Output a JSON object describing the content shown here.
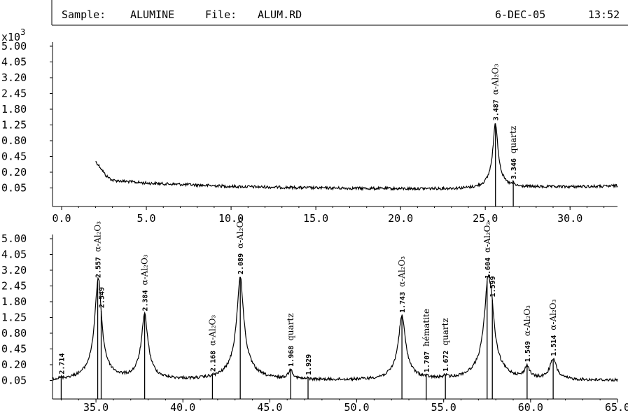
{
  "header": {
    "sample_label": "Sample:",
    "sample_value": "ALUMINE",
    "file_label": "File:",
    "file_value": "ALUM.RD",
    "date": "6-DEC-05",
    "time": "13:52"
  },
  "chart_data": [
    {
      "type": "line",
      "title": "",
      "xlabel": "",
      "ylabel": "",
      "y_multiplier": "x10",
      "y_multiplier_exp": "3",
      "xlim": [
        0.0,
        32.8
      ],
      "ylim": [
        0.0,
        5.0
      ],
      "y_scale": "sqrt",
      "y_ticks": [
        "5.00",
        "4.05",
        "3.20",
        "2.45",
        "1.80",
        "1.25",
        "0.80",
        "0.45",
        "0.20",
        "0.05"
      ],
      "x_ticks": [
        "0.0",
        "5.0",
        "10.0",
        "15.0",
        "20.0",
        "25.0",
        "30.0"
      ],
      "baseline": {
        "points": [
          [
            2.0,
            0.36
          ],
          [
            2.6,
            0.16
          ],
          [
            3.0,
            0.11
          ],
          [
            5.0,
            0.085
          ],
          [
            10.0,
            0.06
          ],
          [
            15.0,
            0.05
          ],
          [
            20.0,
            0.045
          ],
          [
            24.0,
            0.045
          ],
          [
            28.0,
            0.055
          ],
          [
            32.0,
            0.06
          ],
          [
            32.8,
            0.065
          ]
        ]
      },
      "peaks": [
        {
          "pos": 25.6,
          "height": 1.25,
          "width": 0.14
        },
        {
          "pos": 26.65,
          "height": 0.02,
          "width": 0.06
        }
      ],
      "annotations": [
        {
          "x": 25.6,
          "d_spacing": "3.487",
          "phase": "α-Al₂O₃",
          "line": true
        },
        {
          "x": 26.65,
          "d_spacing": "3.346",
          "phase": "quartz",
          "line": true
        }
      ]
    },
    {
      "type": "line",
      "title": "",
      "xlabel": "",
      "ylabel": "",
      "xlim": [
        32.5,
        65.0
      ],
      "ylim": [
        0.0,
        5.0
      ],
      "y_scale": "sqrt",
      "y_ticks": [
        "5.00",
        "4.05",
        "3.20",
        "2.45",
        "1.80",
        "1.25",
        "0.80",
        "0.45",
        "0.20",
        "0.05"
      ],
      "x_ticks": [
        "35.0",
        "40.0",
        "45.0",
        "50.0",
        "55.0",
        "60.0",
        "65.0"
      ],
      "baseline": {
        "points": [
          [
            32.5,
            0.05
          ],
          [
            65.0,
            0.05
          ]
        ]
      },
      "peaks": [
        {
          "pos": 33.0,
          "height": 0.005,
          "width": 0.08
        },
        {
          "pos": 35.1,
          "height": 2.1,
          "width": 0.17
        },
        {
          "pos": 35.2,
          "height": 0.9,
          "width": 0.12
        },
        {
          "pos": 37.8,
          "height": 1.3,
          "width": 0.17
        },
        {
          "pos": 41.7,
          "height": 0.005,
          "width": 0.08
        },
        {
          "pos": 43.3,
          "height": 2.8,
          "width": 0.18
        },
        {
          "pos": 46.2,
          "height": 0.08,
          "width": 0.15
        },
        {
          "pos": 47.2,
          "height": 0.006,
          "width": 0.08
        },
        {
          "pos": 52.6,
          "height": 1.25,
          "width": 0.19
        },
        {
          "pos": 54.0,
          "height": 0.006,
          "width": 0.1
        },
        {
          "pos": 55.1,
          "height": 0.02,
          "width": 0.1
        },
        {
          "pos": 57.55,
          "height": 2.5,
          "width": 0.19
        },
        {
          "pos": 57.75,
          "height": 1.0,
          "width": 0.15
        },
        {
          "pos": 59.8,
          "height": 0.12,
          "width": 0.15
        },
        {
          "pos": 61.3,
          "height": 0.22,
          "width": 0.2
        }
      ],
      "annotations": [
        {
          "x": 33.0,
          "d_spacing": "2.714",
          "phase": "",
          "line": true
        },
        {
          "x": 35.1,
          "d_spacing": "2.557",
          "phase": "α-Al₂O₃",
          "line": true
        },
        {
          "x": 35.3,
          "d_spacing": "2.549",
          "phase": "",
          "line": true
        },
        {
          "x": 37.8,
          "d_spacing": "2.384",
          "phase": "α-Al₂O₃",
          "line": true
        },
        {
          "x": 41.7,
          "d_spacing": "2.168",
          "phase": "α-Al₂O₃",
          "line": true
        },
        {
          "x": 43.3,
          "d_spacing": "2.089",
          "phase": "α-Al₂O₃",
          "line": true
        },
        {
          "x": 46.2,
          "d_spacing": "1.968",
          "phase": "quartz",
          "line": true
        },
        {
          "x": 47.2,
          "d_spacing": "1.929",
          "phase": "",
          "line": true
        },
        {
          "x": 52.6,
          "d_spacing": "1.743",
          "phase": "α-Al₂O₃",
          "line": true
        },
        {
          "x": 54.0,
          "d_spacing": "1.707",
          "phase": "hématite",
          "line": true
        },
        {
          "x": 55.1,
          "d_spacing": "1.672",
          "phase": "quartz",
          "line": true
        },
        {
          "x": 57.5,
          "d_spacing": "1.604",
          "phase": "α-Al₂O₃",
          "line": true
        },
        {
          "x": 57.8,
          "d_spacing": "1.599",
          "phase": "",
          "line": true
        },
        {
          "x": 59.8,
          "d_spacing": "1.549",
          "phase": "α-Al₂O₃",
          "line": true
        },
        {
          "x": 61.3,
          "d_spacing": "1.514",
          "phase": "α-Al₂O₃",
          "line": true
        }
      ]
    }
  ]
}
